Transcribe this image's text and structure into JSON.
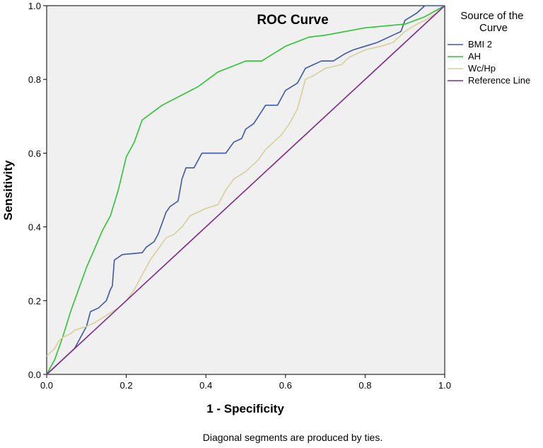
{
  "chart_data": {
    "type": "line",
    "title": "ROC Curve",
    "xlabel": "1 - Specificity",
    "ylabel": "Sensitivity",
    "xlim": [
      0,
      1
    ],
    "ylim": [
      0,
      1
    ],
    "x_ticks": [
      "0.0",
      "0.2",
      "0.4",
      "0.6",
      "0.8",
      "1.0"
    ],
    "y_ticks": [
      "0.0",
      "0.2",
      "0.4",
      "0.6",
      "0.8",
      "1.0"
    ],
    "legend_title": "Source of the Curve",
    "legend_position": "right",
    "footnote": "Diagonal segments are produced by ties.",
    "series": [
      {
        "name": "BMI 2",
        "color": "#3f57a7",
        "points": [
          [
            0,
            0
          ],
          [
            0.02,
            0.02
          ],
          [
            0.04,
            0.04
          ],
          [
            0.06,
            0.06
          ],
          [
            0.07,
            0.07
          ],
          [
            0.08,
            0.09
          ],
          [
            0.1,
            0.13
          ],
          [
            0.11,
            0.17
          ],
          [
            0.13,
            0.18
          ],
          [
            0.15,
            0.2
          ],
          [
            0.16,
            0.23
          ],
          [
            0.165,
            0.24
          ],
          [
            0.17,
            0.31
          ],
          [
            0.19,
            0.325
          ],
          [
            0.24,
            0.33
          ],
          [
            0.25,
            0.345
          ],
          [
            0.27,
            0.36
          ],
          [
            0.28,
            0.38
          ],
          [
            0.29,
            0.41
          ],
          [
            0.3,
            0.44
          ],
          [
            0.31,
            0.455
          ],
          [
            0.33,
            0.47
          ],
          [
            0.34,
            0.53
          ],
          [
            0.35,
            0.56
          ],
          [
            0.37,
            0.56
          ],
          [
            0.39,
            0.6
          ],
          [
            0.45,
            0.6
          ],
          [
            0.47,
            0.63
          ],
          [
            0.49,
            0.64
          ],
          [
            0.5,
            0.665
          ],
          [
            0.52,
            0.68
          ],
          [
            0.55,
            0.73
          ],
          [
            0.58,
            0.73
          ],
          [
            0.6,
            0.77
          ],
          [
            0.63,
            0.79
          ],
          [
            0.65,
            0.83
          ],
          [
            0.67,
            0.84
          ],
          [
            0.69,
            0.85
          ],
          [
            0.72,
            0.85
          ],
          [
            0.75,
            0.87
          ],
          [
            0.77,
            0.88
          ],
          [
            0.8,
            0.89
          ],
          [
            0.83,
            0.9
          ],
          [
            0.87,
            0.92
          ],
          [
            0.89,
            0.93
          ],
          [
            0.9,
            0.96
          ],
          [
            0.93,
            0.98
          ],
          [
            0.95,
            1.0
          ],
          [
            1.0,
            1.0
          ]
        ]
      },
      {
        "name": "AH",
        "color": "#2ec436",
        "points": [
          [
            0,
            0
          ],
          [
            0.02,
            0.04
          ],
          [
            0.04,
            0.1
          ],
          [
            0.06,
            0.17
          ],
          [
            0.08,
            0.23
          ],
          [
            0.1,
            0.29
          ],
          [
            0.12,
            0.34
          ],
          [
            0.14,
            0.39
          ],
          [
            0.16,
            0.43
          ],
          [
            0.18,
            0.5
          ],
          [
            0.2,
            0.59
          ],
          [
            0.22,
            0.63
          ],
          [
            0.24,
            0.69
          ],
          [
            0.29,
            0.73
          ],
          [
            0.38,
            0.78
          ],
          [
            0.43,
            0.82
          ],
          [
            0.5,
            0.85
          ],
          [
            0.54,
            0.85
          ],
          [
            0.6,
            0.89
          ],
          [
            0.66,
            0.915
          ],
          [
            0.7,
            0.92
          ],
          [
            0.8,
            0.94
          ],
          [
            0.9,
            0.95
          ],
          [
            0.95,
            0.97
          ],
          [
            1.0,
            1.0
          ]
        ]
      },
      {
        "name": "Wc/Hp",
        "color": "#d6cf9a",
        "points": [
          [
            0,
            0.05
          ],
          [
            0.01,
            0.06
          ],
          [
            0.02,
            0.07
          ],
          [
            0.03,
            0.09
          ],
          [
            0.04,
            0.1
          ],
          [
            0.06,
            0.11
          ],
          [
            0.07,
            0.12
          ],
          [
            0.1,
            0.13
          ],
          [
            0.12,
            0.14
          ],
          [
            0.15,
            0.16
          ],
          [
            0.18,
            0.18
          ],
          [
            0.2,
            0.2
          ],
          [
            0.22,
            0.23
          ],
          [
            0.24,
            0.27
          ],
          [
            0.26,
            0.31
          ],
          [
            0.28,
            0.34
          ],
          [
            0.3,
            0.37
          ],
          [
            0.32,
            0.38
          ],
          [
            0.34,
            0.4
          ],
          [
            0.36,
            0.43
          ],
          [
            0.38,
            0.44
          ],
          [
            0.4,
            0.45
          ],
          [
            0.43,
            0.46
          ],
          [
            0.45,
            0.5
          ],
          [
            0.47,
            0.53
          ],
          [
            0.5,
            0.55
          ],
          [
            0.53,
            0.58
          ],
          [
            0.55,
            0.61
          ],
          [
            0.57,
            0.63
          ],
          [
            0.59,
            0.65
          ],
          [
            0.61,
            0.68
          ],
          [
            0.63,
            0.72
          ],
          [
            0.65,
            0.8
          ],
          [
            0.67,
            0.81
          ],
          [
            0.7,
            0.83
          ],
          [
            0.74,
            0.84
          ],
          [
            0.76,
            0.86
          ],
          [
            0.78,
            0.87
          ],
          [
            0.8,
            0.88
          ],
          [
            0.84,
            0.89
          ],
          [
            0.87,
            0.9
          ],
          [
            0.9,
            0.93
          ],
          [
            0.93,
            0.95
          ],
          [
            0.95,
            0.96
          ],
          [
            0.98,
            0.98
          ],
          [
            1.0,
            1.0
          ]
        ]
      },
      {
        "name": "Reference Line",
        "color": "#7f2a8a",
        "points": [
          [
            0,
            0
          ],
          [
            1,
            1
          ]
        ]
      }
    ]
  }
}
